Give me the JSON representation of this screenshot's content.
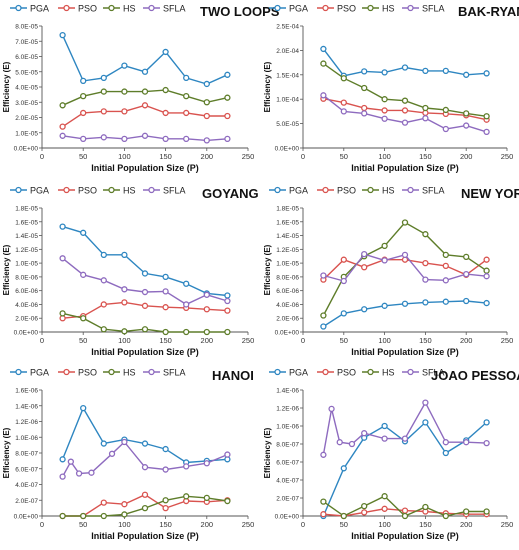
{
  "chart_data": [
    {
      "type": "line",
      "title": "TWO LOOPS",
      "xlabel": "Initial  Population  Size (P)",
      "ylabel": "Efficiency (E)",
      "xlim": [
        0,
        250
      ],
      "ylim": [
        0,
        8e-05
      ],
      "x_ticks": [
        0,
        50,
        100,
        150,
        200,
        250
      ],
      "x_tick_labels": [
        "0",
        "50",
        "100",
        "150",
        "200",
        "250"
      ],
      "y_ticks": [
        0,
        1e-05,
        2e-05,
        3e-05,
        4e-05,
        5e-05,
        6e-05,
        7e-05,
        8e-05
      ],
      "y_tick_labels": [
        "0.0E+00",
        "1.0E-05",
        "2.0E-05",
        "3.0E-05",
        "4.0E-05",
        "5.0E-05",
        "6.0E-05",
        "7.0E-05",
        "8.0E-05"
      ],
      "grid": false,
      "legend_position": "top-left",
      "x": [
        25,
        50,
        75,
        100,
        125,
        150,
        175,
        200,
        225
      ],
      "series": [
        {
          "name": "PGA",
          "color": "#2e86c1",
          "values": [
            7.4e-05,
            4.4e-05,
            4.6e-05,
            5.4e-05,
            5e-05,
            6.3e-05,
            4.6e-05,
            4.2e-05,
            4.8e-05
          ]
        },
        {
          "name": "PSO",
          "color": "#d9534f",
          "values": [
            1.4e-05,
            2.3e-05,
            2.4e-05,
            2.4e-05,
            2.8e-05,
            2.3e-05,
            2.3e-05,
            2.1e-05,
            2.1e-05
          ]
        },
        {
          "name": "HS",
          "color": "#5e7d2a",
          "values": [
            2.8e-05,
            3.4e-05,
            3.7e-05,
            3.7e-05,
            3.7e-05,
            3.8e-05,
            3.4e-05,
            3e-05,
            3.3e-05
          ]
        },
        {
          "name": "SFLA",
          "color": "#8e6bbf",
          "values": [
            8e-06,
            6e-06,
            7e-06,
            6e-06,
            8e-06,
            6e-06,
            6e-06,
            5e-06,
            6e-06
          ]
        }
      ]
    },
    {
      "type": "line",
      "title": "BAK-RYAN",
      "xlabel": "Initial  Population  Size (P)",
      "ylabel": "Efficiency (E)",
      "xlim": [
        0,
        250
      ],
      "ylim": [
        0,
        0.00025
      ],
      "x_ticks": [
        0,
        50,
        100,
        150,
        200,
        250
      ],
      "x_tick_labels": [
        "0",
        "50",
        "100",
        "150",
        "200",
        "250"
      ],
      "y_ticks": [
        0,
        5e-05,
        0.0001,
        0.00015,
        0.0002,
        0.00025
      ],
      "y_tick_labels": [
        "0.0E+00",
        "5.0E-05",
        "1.0E-04",
        "1.5E-04",
        "2.0E-04",
        "2.5E-04"
      ],
      "grid": false,
      "legend_position": "top-left",
      "x": [
        25,
        50,
        75,
        100,
        125,
        150,
        175,
        200,
        225
      ],
      "series": [
        {
          "name": "PGA",
          "color": "#2e86c1",
          "values": [
            0.000203,
            0.000148,
            0.000157,
            0.000155,
            0.000165,
            0.000158,
            0.000158,
            0.00015,
            0.000153
          ]
        },
        {
          "name": "PSO",
          "color": "#d9534f",
          "values": [
            0.000101,
            9.3e-05,
            8.2e-05,
            7.7e-05,
            7.7e-05,
            7.2e-05,
            7e-05,
            6.7e-05,
            5.8e-05
          ]
        },
        {
          "name": "HS",
          "color": "#5e7d2a",
          "values": [
            0.000173,
            0.000143,
            0.000123,
            0.0001,
            9.7e-05,
            8.2e-05,
            7.8e-05,
            7.1e-05,
            6.5e-05
          ]
        },
        {
          "name": "SFLA",
          "color": "#8e6bbf",
          "values": [
            0.000108,
            7.5e-05,
            7.1e-05,
            6e-05,
            5.2e-05,
            6.1e-05,
            3.9e-05,
            4.6e-05,
            3.3e-05
          ]
        }
      ]
    },
    {
      "type": "line",
      "title": "GOYANG",
      "xlabel": "Initial  Population  Size (P)",
      "ylabel": "Efficiency (E)",
      "xlim": [
        0,
        250
      ],
      "ylim": [
        0,
        1.8e-05
      ],
      "x_ticks": [
        0,
        50,
        100,
        150,
        200,
        250
      ],
      "x_tick_labels": [
        "0",
        "50",
        "100",
        "150",
        "200",
        "250"
      ],
      "y_ticks": [
        0,
        2e-06,
        4e-06,
        6e-06,
        8e-06,
        1e-05,
        1.2e-05,
        1.4e-05,
        1.6e-05,
        1.8e-05
      ],
      "y_tick_labels": [
        "0.0E+00",
        "2.0E-06",
        "4.0E-06",
        "6.0E-06",
        "8.0E-06",
        "1.0E-05",
        "1.2E-05",
        "1.4E-05",
        "1.6E-05",
        "1.8E-05"
      ],
      "grid": false,
      "legend_position": "top-left",
      "x": [
        25,
        50,
        75,
        100,
        125,
        150,
        175,
        200,
        225
      ],
      "series": [
        {
          "name": "PGA",
          "color": "#2e86c1",
          "values": [
            1.53e-05,
            1.44e-05,
            1.12e-05,
            1.12e-05,
            8.5e-06,
            8e-06,
            7e-06,
            5.6e-06,
            5.3e-06
          ]
        },
        {
          "name": "PSO",
          "color": "#d9534f",
          "values": [
            2e-06,
            2.3e-06,
            4e-06,
            4.3e-06,
            3.8e-06,
            3.6e-06,
            3.5e-06,
            3.3e-06,
            3.1e-06
          ]
        },
        {
          "name": "HS",
          "color": "#5e7d2a",
          "values": [
            2.7e-06,
            2e-06,
            4e-07,
            1e-07,
            4e-07,
            0,
            0,
            0,
            0
          ]
        },
        {
          "name": "SFLA",
          "color": "#8e6bbf",
          "values": [
            1.07e-05,
            8.3e-06,
            7.5e-06,
            6.2e-06,
            5.8e-06,
            5.9e-06,
            4e-06,
            5.4e-06,
            4.5e-06
          ]
        }
      ]
    },
    {
      "type": "line",
      "title": "NEW YORK",
      "xlabel": "Initial  Population  Size (P)",
      "ylabel": "Efficiency (E)",
      "xlim": [
        0,
        250
      ],
      "ylim": [
        0,
        1.8e-05
      ],
      "x_ticks": [
        0,
        50,
        100,
        150,
        200,
        250
      ],
      "x_tick_labels": [
        "0",
        "50",
        "100",
        "150",
        "200",
        "250"
      ],
      "y_ticks": [
        0,
        2e-06,
        4e-06,
        6e-06,
        8e-06,
        1e-05,
        1.2e-05,
        1.4e-05,
        1.6e-05,
        1.8e-05
      ],
      "y_tick_labels": [
        "0.0E+00",
        "2.0E-06",
        "4.0E-06",
        "6.0E-06",
        "8.0E-06",
        "1.0E-05",
        "1.2E-05",
        "1.4E-05",
        "1.6E-05",
        "1.8E-05"
      ],
      "grid": false,
      "legend_position": "top-left",
      "x": [
        25,
        50,
        75,
        100,
        125,
        150,
        175,
        200,
        225
      ],
      "series": [
        {
          "name": "PGA",
          "color": "#2e86c1",
          "values": [
            8e-07,
            2.7e-06,
            3.3e-06,
            3.8e-06,
            4.1e-06,
            4.3e-06,
            4.4e-06,
            4.5e-06,
            4.2e-06
          ]
        },
        {
          "name": "PSO",
          "color": "#d9534f",
          "values": [
            7.6e-06,
            1.05e-05,
            9.4e-06,
            1.05e-05,
            1.05e-05,
            1e-05,
            9.6e-06,
            8.3e-06,
            1.05e-05
          ]
        },
        {
          "name": "HS",
          "color": "#5e7d2a",
          "values": [
            2.4e-06,
            8e-06,
            1.1e-05,
            1.25e-05,
            1.59e-05,
            1.42e-05,
            1.12e-05,
            1.09e-05,
            8.9e-06
          ]
        },
        {
          "name": "SFLA",
          "color": "#8e6bbf",
          "values": [
            8.2e-06,
            7.4e-06,
            1.13e-05,
            1.04e-05,
            1.12e-05,
            7.6e-06,
            7.5e-06,
            8.4e-06,
            8.1e-06
          ]
        }
      ]
    },
    {
      "type": "line",
      "title": "HANOI",
      "xlabel": "Initial  Population  Size (P)",
      "ylabel": "Efficiency (E)",
      "xlim": [
        0,
        250
      ],
      "ylim": [
        0,
        1.6e-06
      ],
      "x_ticks": [
        0,
        50,
        100,
        150,
        200,
        250
      ],
      "x_tick_labels": [
        "0",
        "50",
        "100",
        "150",
        "200",
        "250"
      ],
      "y_ticks": [
        0,
        2e-07,
        4e-07,
        6e-07,
        8e-07,
        1e-06,
        1.2e-06,
        1.4e-06,
        1.6e-06
      ],
      "y_tick_labels": [
        "0.0E+00",
        "2.0E-07",
        "4.0E-07",
        "6.0E-07",
        "8.0E-07",
        "1.0E-06",
        "1.2E-06",
        "1.4E-06",
        "1.6E-06"
      ],
      "grid": false,
      "legend_position": "top-left",
      "x": [
        25,
        50,
        75,
        100,
        125,
        150,
        175,
        200,
        225
      ],
      "series": [
        {
          "name": "PGA",
          "color": "#2e86c1",
          "values": [
            7.2e-07,
            1.37e-06,
            9.2e-07,
            9.7e-07,
            9.2e-07,
            8.5e-07,
            6.8e-07,
            7e-07,
            7.2e-07
          ]
        },
        {
          "name": "PSO",
          "color": "#d9534f",
          "values": [
            0,
            0,
            1.7e-07,
            1.5e-07,
            2.7e-07,
            1e-07,
            1.9e-07,
            1.8e-07,
            2e-07
          ]
        },
        {
          "name": "HS",
          "color": "#5e7d2a",
          "values": [
            0,
            0,
            0,
            2e-08,
            1e-07,
            2e-07,
            2.5e-07,
            2.3e-07,
            1.9e-07
          ]
        },
        {
          "name": "SFLA",
          "color": "#8e6bbf",
          "values": [
            5e-07,
            6.9e-07,
            5.4e-07,
            5.5e-07,
            7.9e-07,
            9.4e-07,
            6.2e-07,
            5.9e-07,
            6.3e-07,
            6.7e-07,
            7.8e-07
          ],
          "x": [
            25,
            35,
            45,
            60,
            85,
            100,
            125,
            150,
            175,
            200,
            225
          ]
        }
      ]
    },
    {
      "type": "line",
      "title": "JOAO PESSOA",
      "xlabel": "Initial  Population  Size (P)",
      "ylabel": "Efficiency (E)",
      "xlim": [
        0,
        250
      ],
      "ylim": [
        0,
        1.4e-06
      ],
      "x_ticks": [
        0,
        50,
        100,
        150,
        200,
        250
      ],
      "x_tick_labels": [
        "0",
        "50",
        "100",
        "150",
        "200",
        "250"
      ],
      "y_ticks": [
        0,
        2e-07,
        4e-07,
        6e-07,
        8e-07,
        1e-06,
        1.2e-06,
        1.4e-06
      ],
      "y_tick_labels": [
        "0.0E+00",
        "2.0E-07",
        "4.0E-07",
        "6.0E-07",
        "8.0E-07",
        "1.0E-06",
        "1.2E-06",
        "1.4E-06"
      ],
      "grid": false,
      "legend_position": "top-left",
      "x": [
        25,
        50,
        75,
        100,
        125,
        150,
        175,
        200,
        225
      ],
      "series": [
        {
          "name": "PGA",
          "color": "#2e86c1",
          "values": [
            0,
            5.3e-07,
            8.7e-07,
            1e-06,
            8.3e-07,
            1.04e-06,
            7e-07,
            8.4e-07,
            1.04e-06
          ]
        },
        {
          "name": "PSO",
          "color": "#d9534f",
          "values": [
            2e-08,
            0,
            4e-08,
            8e-08,
            6e-08,
            5e-08,
            3e-08,
            2e-08,
            2e-08
          ]
        },
        {
          "name": "HS",
          "color": "#5e7d2a",
          "values": [
            1.6e-07,
            0,
            1.1e-07,
            2.2e-07,
            0,
            1e-07,
            0,
            5e-08,
            5e-08
          ]
        },
        {
          "name": "SFLA",
          "color": "#8e6bbf",
          "values": [
            6.8e-07,
            1.19e-06,
            8.2e-07,
            8e-07,
            9.2e-07,
            8.6e-07,
            8.6e-07,
            1.26e-06,
            8.2e-07,
            8.2e-07,
            8.1e-07
          ],
          "x": [
            25,
            35,
            45,
            60,
            75,
            100,
            125,
            150,
            175,
            200,
            225
          ]
        }
      ]
    }
  ]
}
